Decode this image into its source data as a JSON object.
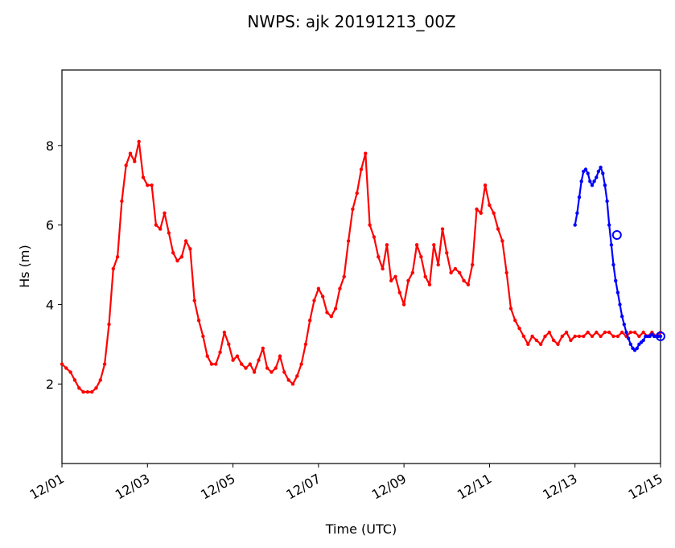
{
  "chart_data": {
    "type": "line",
    "title": "NWPS: ajk 20191213_00Z",
    "xlabel": "Time (UTC)",
    "ylabel": "Hs (m)",
    "xlim": [
      0,
      14
    ],
    "ylim": [
      0,
      9.9
    ],
    "grid": false,
    "legend": "none",
    "x_ticks": [
      {
        "value": 0,
        "label": "12/01"
      },
      {
        "value": 2,
        "label": "12/03"
      },
      {
        "value": 4,
        "label": "12/05"
      },
      {
        "value": 6,
        "label": "12/07"
      },
      {
        "value": 8,
        "label": "12/09"
      },
      {
        "value": 10,
        "label": "12/11"
      },
      {
        "value": 12,
        "label": "12/13"
      },
      {
        "value": 14,
        "label": "12/15"
      }
    ],
    "y_ticks": [
      {
        "value": 2,
        "label": "2"
      },
      {
        "value": 4,
        "label": "4"
      },
      {
        "value": 6,
        "label": "6"
      },
      {
        "value": 8,
        "label": "8"
      }
    ],
    "x_unit_note": "x values are days from 12/01 00Z",
    "series": [
      {
        "color": "#ff0000",
        "marker": "dot",
        "x": [
          0,
          0.1,
          0.2,
          0.3,
          0.4,
          0.5,
          0.6,
          0.7,
          0.8,
          0.9,
          1.0,
          1.1,
          1.2,
          1.3,
          1.4,
          1.5,
          1.6,
          1.7,
          1.8,
          1.9,
          2.0,
          2.1,
          2.2,
          2.3,
          2.4,
          2.5,
          2.6,
          2.7,
          2.8,
          2.9,
          3.0,
          3.1,
          3.2,
          3.3,
          3.4,
          3.5,
          3.6,
          3.7,
          3.8,
          3.9,
          4.0,
          4.1,
          4.2,
          4.3,
          4.4,
          4.5,
          4.6,
          4.7,
          4.8,
          4.9,
          5.0,
          5.1,
          5.2,
          5.3,
          5.4,
          5.5,
          5.6,
          5.7,
          5.8,
          5.9,
          6.0,
          6.1,
          6.2,
          6.3,
          6.4,
          6.5,
          6.6,
          6.7,
          6.8,
          6.9,
          7.0,
          7.1,
          7.2,
          7.3,
          7.4,
          7.5,
          7.6,
          7.7,
          7.8,
          7.9,
          8.0,
          8.1,
          8.2,
          8.3,
          8.4,
          8.5,
          8.6,
          8.7,
          8.8,
          8.9,
          9.0,
          9.1,
          9.2,
          9.3,
          9.4,
          9.5,
          9.6,
          9.7,
          9.8,
          9.9,
          10.0,
          10.1,
          10.2,
          10.3,
          10.4,
          10.5,
          10.6,
          10.7,
          10.8,
          10.9,
          11.0,
          11.1,
          11.2,
          11.3,
          11.4,
          11.5,
          11.6,
          11.7,
          11.8,
          11.9,
          12.0,
          12.1,
          12.2,
          12.3,
          12.4,
          12.5,
          12.6,
          12.7,
          12.8,
          12.9,
          13.0,
          13.1,
          13.2,
          13.3,
          13.4,
          13.5,
          13.6,
          13.7,
          13.8,
          13.9,
          14.0
        ],
        "y": [
          2.5,
          2.4,
          2.3,
          2.1,
          1.9,
          1.8,
          1.8,
          1.8,
          1.9,
          2.1,
          2.5,
          3.5,
          4.9,
          5.2,
          6.6,
          7.5,
          7.8,
          7.6,
          8.1,
          7.2,
          7.0,
          7.0,
          6.0,
          5.9,
          6.3,
          5.8,
          5.3,
          5.1,
          5.2,
          5.6,
          5.4,
          4.1,
          3.6,
          3.2,
          2.7,
          2.5,
          2.5,
          2.8,
          3.3,
          3.0,
          2.6,
          2.7,
          2.5,
          2.4,
          2.5,
          2.3,
          2.6,
          2.9,
          2.4,
          2.3,
          2.4,
          2.7,
          2.3,
          2.1,
          2.0,
          2.2,
          2.5,
          3.0,
          3.6,
          4.1,
          4.4,
          4.2,
          3.8,
          3.7,
          3.9,
          4.4,
          4.7,
          5.6,
          6.4,
          6.8,
          7.4,
          7.8,
          6.0,
          5.7,
          5.2,
          4.9,
          5.5,
          4.6,
          4.7,
          4.3,
          4.0,
          4.6,
          4.8,
          5.5,
          5.2,
          4.7,
          4.5,
          5.5,
          5.0,
          5.9,
          5.3,
          4.8,
          4.9,
          4.8,
          4.6,
          4.5,
          5.0,
          6.4,
          6.3,
          7.0,
          6.5,
          6.3,
          5.9,
          5.6,
          4.8,
          3.9,
          3.6,
          3.4,
          3.2,
          3.0,
          3.2,
          3.1,
          3.0,
          3.2,
          3.3,
          3.1,
          3.0,
          3.2,
          3.3,
          3.1,
          3.2,
          3.2,
          3.2,
          3.3,
          3.2,
          3.3,
          3.2,
          3.3,
          3.3,
          3.2,
          3.2,
          3.3,
          3.2,
          3.3,
          3.3,
          3.2,
          3.3,
          3.2,
          3.3,
          3.2,
          3.3
        ]
      },
      {
        "color": "#0000ff",
        "marker": "dot",
        "x": [
          12.0,
          12.05,
          12.1,
          12.15,
          12.2,
          12.25,
          12.3,
          12.35,
          12.4,
          12.45,
          12.5,
          12.55,
          12.6,
          12.65,
          12.7,
          12.75,
          12.8,
          12.85,
          12.9,
          12.95,
          13.0,
          13.05,
          13.1,
          13.15,
          13.2,
          13.25,
          13.3,
          13.35,
          13.4,
          13.45,
          13.5,
          13.55,
          13.6,
          13.65,
          13.7,
          13.75,
          13.8,
          13.85,
          13.9,
          13.95,
          14.0
        ],
        "y": [
          6.0,
          6.3,
          6.7,
          7.1,
          7.35,
          7.4,
          7.3,
          7.1,
          7.0,
          7.1,
          7.2,
          7.35,
          7.45,
          7.3,
          7.0,
          6.6,
          6.0,
          5.5,
          5.0,
          4.6,
          4.3,
          4.0,
          3.7,
          3.5,
          3.3,
          3.15,
          3.0,
          2.9,
          2.85,
          2.9,
          3.0,
          3.05,
          3.1,
          3.2,
          3.2,
          3.2,
          3.25,
          3.2,
          3.2,
          3.2,
          3.2
        ]
      }
    ],
    "highlight_points": [
      {
        "x": 12.98,
        "y": 5.75,
        "color": "#0000ff"
      },
      {
        "x": 14.0,
        "y": 3.2,
        "color": "#0000ff"
      }
    ]
  }
}
